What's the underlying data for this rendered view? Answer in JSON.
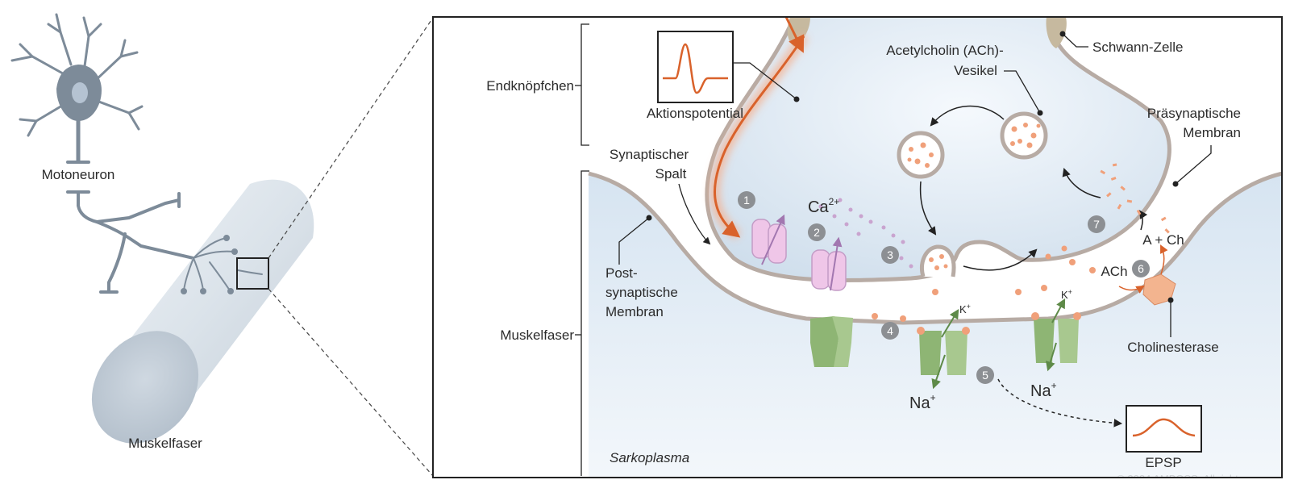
{
  "overview": {
    "motoneuron": "Motoneuron",
    "muskelfaser": "Muskelfaser"
  },
  "labels": {
    "endknoepfchen": "Endknöpfchen",
    "aktionspotential": "Aktionspotential",
    "synaptischer_spalt_1": "Synaptischer",
    "synaptischer_spalt_2": "Spalt",
    "post_1": "Post-",
    "post_2": "synaptische",
    "post_3": "Membran",
    "muskelfaser_bracket": "Muskelfaser",
    "ach_vesikel_1": "Acetylcholin (ACh)-",
    "ach_vesikel_2": "Vesikel",
    "schwann": "Schwann-Zelle",
    "prae_1": "Präsynaptische",
    "prae_2": "Membran",
    "ca_base": "Ca",
    "ca_sup": "2+",
    "k_base": "K",
    "k_sup": "+",
    "na_base": "Na",
    "na_sup": "+",
    "a_ch": "A + Ch",
    "ach": "ACh",
    "cholinesterase": "Cholinesterase",
    "sarkoplasma": "Sarkoplasma",
    "epsp": "EPSP",
    "copyright": "© 2024 AMBOSS. All rights reserved."
  },
  "steps": [
    "1",
    "2",
    "3",
    "4",
    "5",
    "6",
    "7"
  ],
  "colors": {
    "neuron": "#7d8b99",
    "orange": "#d9622b",
    "membrane": "#b7aba4",
    "vesicle_dot": "#f0a07a",
    "ca_dot": "#c9a4cf",
    "channel_pink": "#efc6e8",
    "channel_green": "#8eb574",
    "cholinesterase": "#f3b48f",
    "step_badge": "#8c8f93",
    "cytoplasm": "#dbe8f4"
  }
}
